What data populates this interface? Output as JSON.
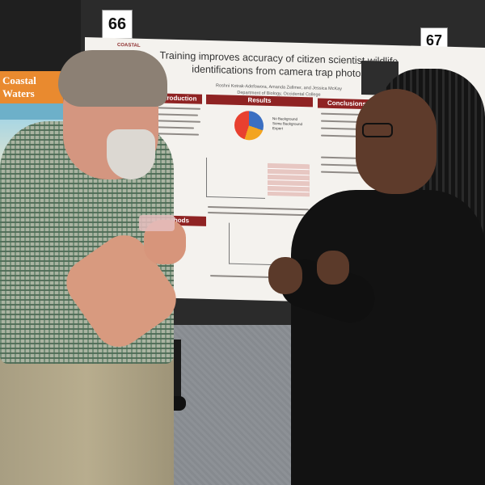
{
  "booths": {
    "left": "66",
    "right": "67"
  },
  "left_poster": {
    "title": "Coastal Waters"
  },
  "poster": {
    "logo": "COASTAL",
    "title": "Training improves accuracy of citizen scientist wildlife identifications from camera trap photos",
    "authors": "Roshni Kotrak-Adefowora, Amanda Zellmer, and Jessica McKay",
    "department": "Department of Biology, Occidental College",
    "sections": {
      "introduction": "Introduction",
      "results": "Results",
      "conclusions": "Conclusions",
      "methods": "Methods"
    },
    "legend": [
      "No Background",
      "Some Background",
      "Expert"
    ],
    "colors": {
      "header": "#8f2323",
      "pie_blue": "#3b6fc2",
      "pie_orange": "#f3a41f",
      "pie_red": "#e8402f"
    }
  }
}
